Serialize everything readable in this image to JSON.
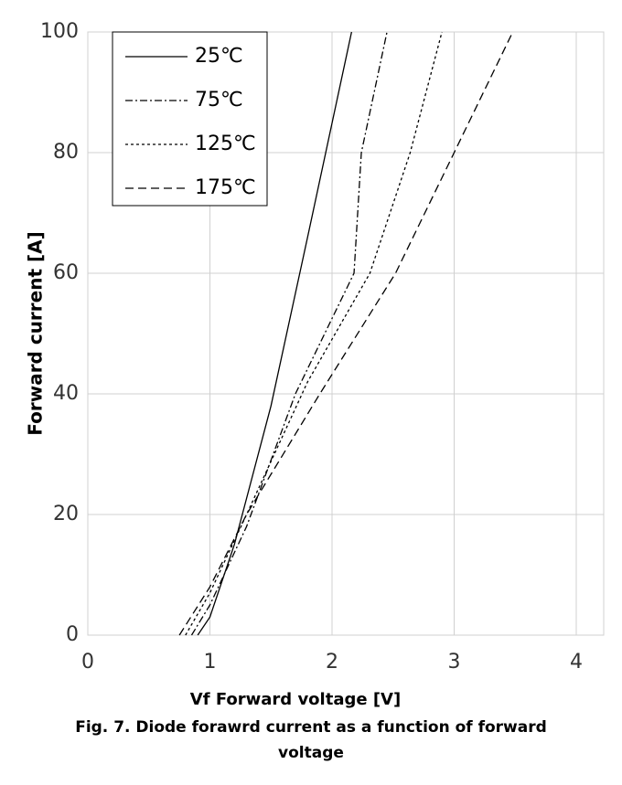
{
  "chart_data": {
    "type": "line",
    "y_label": "Forward current [A]",
    "x_label": "Vf Forward voltage [V]",
    "caption": "Fig. 7. Diode forawrd current as a function of forward voltage",
    "xlim": [
      0,
      4
    ],
    "xticks": [
      0,
      1,
      2,
      3,
      4
    ],
    "ylim": [
      0,
      100
    ],
    "yticks": [
      0,
      20,
      40,
      60,
      80,
      100
    ],
    "grid": true,
    "legend": "upper left",
    "series": [
      {
        "name": "25℃",
        "color": "#000000",
        "dash": "solid",
        "x": [
          0.9,
          1.0,
          1.2,
          1.5,
          1.8,
          2.16
        ],
        "values": [
          0,
          3,
          15,
          38,
          66,
          100
        ]
      },
      {
        "name": "75℃",
        "color": "#000000",
        "dash": "dashdot",
        "x": [
          0.85,
          1.0,
          1.3,
          1.7,
          2.18,
          2.24,
          2.45
        ],
        "values": [
          0,
          5,
          18,
          40,
          60,
          80,
          100
        ]
      },
      {
        "name": "125℃",
        "color": "#000000",
        "dash": "dotted",
        "x": [
          0.8,
          1.0,
          1.3,
          1.8,
          2.31,
          2.64,
          2.9
        ],
        "values": [
          0,
          7,
          20,
          42,
          60,
          80,
          100
        ]
      },
      {
        "name": "175℃",
        "color": "#000000",
        "dash": "dashed",
        "x": [
          0.75,
          1.0,
          1.3,
          1.9,
          2.52,
          3.0,
          3.48
        ],
        "values": [
          0,
          8,
          20,
          40,
          60,
          80,
          100
        ]
      }
    ]
  }
}
